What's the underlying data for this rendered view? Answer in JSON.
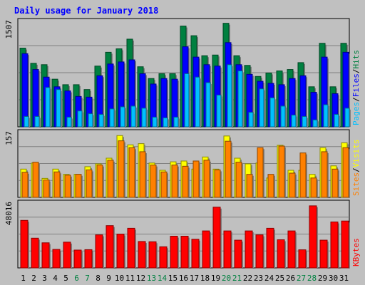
{
  "title": "Daily usage for January 2018",
  "colors": {
    "background": "#c0c0c0",
    "title": "#0000ff",
    "hits": "#008040",
    "files": "#0000ff",
    "pages": "#00c0ff",
    "visits": "#ffff00",
    "sites": "#ff8000",
    "kbytes": "#ff0000",
    "weekday_label": "#000000",
    "weekend_label": "#008040"
  },
  "panels": {
    "top": {
      "max_label": "1507",
      "legend": [
        "Pages",
        "/",
        "Files",
        "/",
        "Hits"
      ],
      "ylim": [
        0,
        1507
      ]
    },
    "middle": {
      "max_label": "157",
      "legend": [
        "Sites",
        "/",
        "Visits"
      ],
      "ylim": [
        0,
        157
      ]
    },
    "bottom": {
      "max_label": "48016",
      "legend": [
        "KBytes"
      ],
      "ylim": [
        0,
        48016
      ]
    }
  },
  "chart_data": {
    "type": "bar",
    "title": "Daily usage for January 2018",
    "categories": [
      "1",
      "2",
      "3",
      "4",
      "5",
      "6",
      "7",
      "8",
      "9",
      "10",
      "11",
      "12",
      "13",
      "14",
      "15",
      "16",
      "17",
      "18",
      "19",
      "20",
      "21",
      "22",
      "23",
      "24",
      "25",
      "26",
      "27",
      "28",
      "29",
      "30",
      "31"
    ],
    "weekend_days": [
      "6",
      "7",
      "13",
      "14",
      "20",
      "21",
      "27",
      "28"
    ],
    "series": [
      {
        "name": "Hits",
        "panel": "top",
        "values": [
          1140,
          920,
          900,
          690,
          610,
          610,
          540,
          880,
          1080,
          1130,
          1270,
          870,
          700,
          770,
          770,
          1460,
          1320,
          1030,
          1040,
          1500,
          1030,
          890,
          730,
          780,
          810,
          830,
          930,
          580,
          1210,
          580,
          1210
        ]
      },
      {
        "name": "Files",
        "panel": "top",
        "values": [
          1060,
          830,
          720,
          580,
          520,
          440,
          430,
          740,
          910,
          940,
          970,
          770,
          620,
          700,
          690,
          1160,
          1010,
          900,
          880,
          1220,
          900,
          760,
          660,
          630,
          610,
          700,
          740,
          500,
          1010,
          480,
          1080
        ]
      },
      {
        "name": "Pages",
        "panel": "top",
        "values": [
          150,
          150,
          570,
          540,
          140,
          230,
          190,
          180,
          260,
          290,
          300,
          270,
          140,
          130,
          140,
          770,
          720,
          640,
          460,
          900,
          810,
          210,
          550,
          420,
          300,
          170,
          150,
          100,
          320,
          180,
          270
        ]
      },
      {
        "name": "Visits",
        "panel": "middle",
        "values": [
          70,
          85,
          47,
          70,
          57,
          57,
          76,
          83,
          97,
          153,
          130,
          133,
          85,
          67,
          88,
          90,
          70,
          100,
          70,
          152,
          97,
          83,
          85,
          48,
          129,
          67,
          67,
          57,
          123,
          78,
          135
        ]
      },
      {
        "name": "Sites",
        "panel": "middle",
        "values": [
          62,
          87,
          43,
          63,
          55,
          57,
          68,
          80,
          92,
          140,
          123,
          113,
          80,
          63,
          80,
          77,
          90,
          92,
          68,
          139,
          87,
          57,
          123,
          57,
          127,
          60,
          110,
          48,
          113,
          70,
          123
        ]
      },
      {
        "name": "KBytes",
        "panel": "bottom",
        "values": [
          36000,
          22500,
          19000,
          14000,
          19500,
          13500,
          13800,
          25000,
          32000,
          25600,
          30000,
          20000,
          19800,
          16000,
          24000,
          24000,
          21700,
          28000,
          46000,
          28000,
          21000,
          28000,
          25000,
          30000,
          21300,
          28000,
          13700,
          47000,
          21000,
          34800,
          35500
        ]
      }
    ]
  }
}
